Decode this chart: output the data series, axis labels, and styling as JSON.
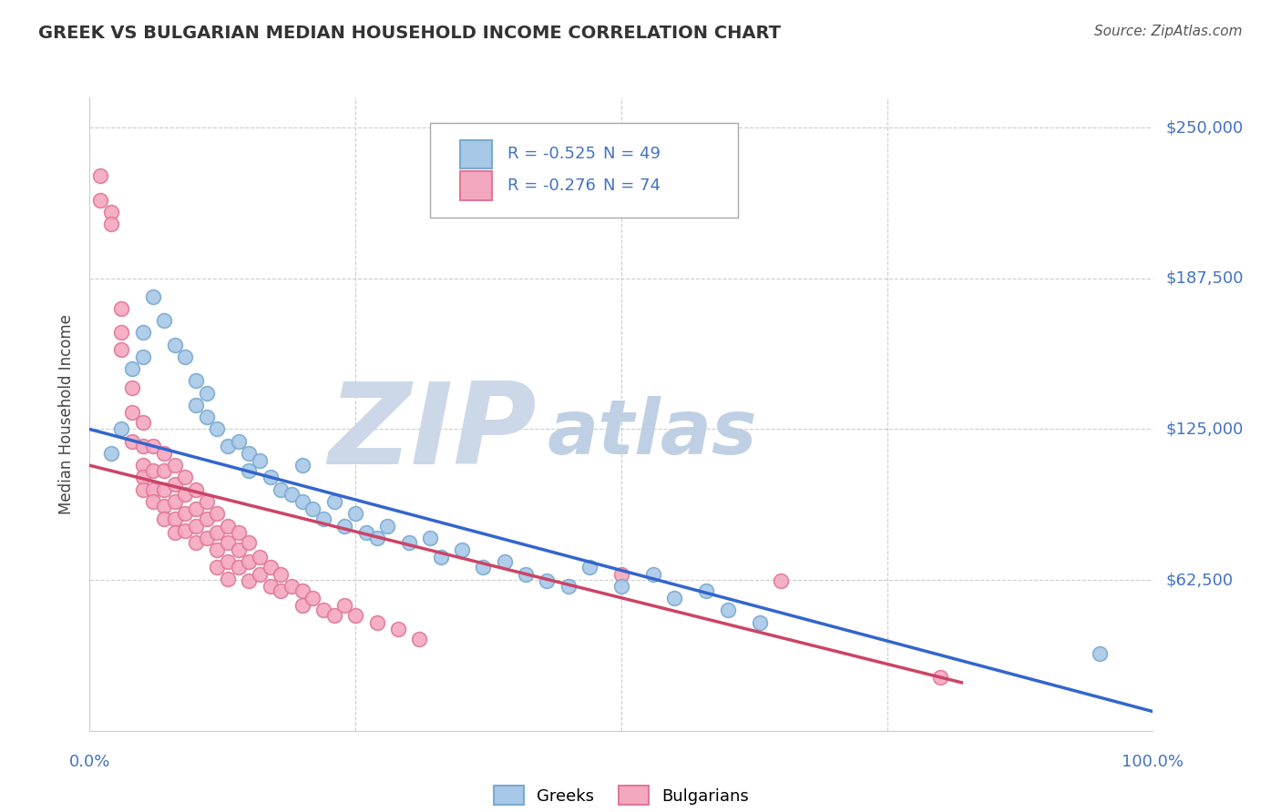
{
  "title": "GREEK VS BULGARIAN MEDIAN HOUSEHOLD INCOME CORRELATION CHART",
  "source": "Source: ZipAtlas.com",
  "ylabel": "Median Household Income",
  "xlim": [
    0.0,
    1.0
  ],
  "ylim": [
    0,
    262500
  ],
  "greek_color": "#a8c8e8",
  "bulgarian_color": "#f4a8c0",
  "greek_edge_color": "#7aaad0",
  "bulgarian_edge_color": "#e07898",
  "greek_line_color": "#3366cc",
  "bulgarian_line_color": "#cc4466",
  "greek_R": -0.525,
  "greek_N": 49,
  "bulgarian_R": -0.276,
  "bulgarian_N": 74,
  "watermark_zip_color": "#ccd8e8",
  "watermark_atlas_color": "#c0d0e4",
  "background_color": "#ffffff",
  "grid_color": "#cccccc",
  "title_color": "#333333",
  "axis_label_color": "#4472c4",
  "legend_R_color": "#4472c4",
  "greeks_x": [
    0.02,
    0.03,
    0.04,
    0.05,
    0.05,
    0.06,
    0.07,
    0.08,
    0.09,
    0.1,
    0.1,
    0.11,
    0.11,
    0.12,
    0.13,
    0.14,
    0.15,
    0.15,
    0.16,
    0.17,
    0.18,
    0.19,
    0.2,
    0.2,
    0.21,
    0.22,
    0.23,
    0.24,
    0.25,
    0.26,
    0.27,
    0.28,
    0.3,
    0.32,
    0.33,
    0.35,
    0.37,
    0.39,
    0.41,
    0.43,
    0.45,
    0.47,
    0.5,
    0.53,
    0.55,
    0.58,
    0.6,
    0.63,
    0.95
  ],
  "greeks_y": [
    115000,
    125000,
    150000,
    165000,
    155000,
    180000,
    170000,
    160000,
    155000,
    145000,
    135000,
    130000,
    140000,
    125000,
    118000,
    120000,
    115000,
    108000,
    112000,
    105000,
    100000,
    98000,
    110000,
    95000,
    92000,
    88000,
    95000,
    85000,
    90000,
    82000,
    80000,
    85000,
    78000,
    80000,
    72000,
    75000,
    68000,
    70000,
    65000,
    62000,
    60000,
    68000,
    60000,
    65000,
    55000,
    58000,
    50000,
    45000,
    32000
  ],
  "bulgarians_x": [
    0.01,
    0.01,
    0.02,
    0.02,
    0.03,
    0.03,
    0.03,
    0.04,
    0.04,
    0.04,
    0.05,
    0.05,
    0.05,
    0.05,
    0.05,
    0.06,
    0.06,
    0.06,
    0.06,
    0.07,
    0.07,
    0.07,
    0.07,
    0.07,
    0.08,
    0.08,
    0.08,
    0.08,
    0.08,
    0.09,
    0.09,
    0.09,
    0.09,
    0.1,
    0.1,
    0.1,
    0.1,
    0.11,
    0.11,
    0.11,
    0.12,
    0.12,
    0.12,
    0.12,
    0.13,
    0.13,
    0.13,
    0.13,
    0.14,
    0.14,
    0.14,
    0.15,
    0.15,
    0.15,
    0.16,
    0.16,
    0.17,
    0.17,
    0.18,
    0.18,
    0.19,
    0.2,
    0.2,
    0.21,
    0.22,
    0.23,
    0.24,
    0.25,
    0.27,
    0.29,
    0.31,
    0.5,
    0.65,
    0.8
  ],
  "bulgarians_y": [
    220000,
    230000,
    215000,
    210000,
    175000,
    165000,
    158000,
    142000,
    132000,
    120000,
    128000,
    118000,
    110000,
    105000,
    100000,
    118000,
    108000,
    100000,
    95000,
    115000,
    108000,
    100000,
    93000,
    88000,
    110000,
    102000,
    95000,
    88000,
    82000,
    105000,
    98000,
    90000,
    83000,
    100000,
    92000,
    85000,
    78000,
    95000,
    88000,
    80000,
    90000,
    82000,
    75000,
    68000,
    85000,
    78000,
    70000,
    63000,
    82000,
    75000,
    68000,
    78000,
    70000,
    62000,
    72000,
    65000,
    68000,
    60000,
    65000,
    58000,
    60000,
    58000,
    52000,
    55000,
    50000,
    48000,
    52000,
    48000,
    45000,
    42000,
    38000,
    65000,
    62000,
    22000
  ]
}
